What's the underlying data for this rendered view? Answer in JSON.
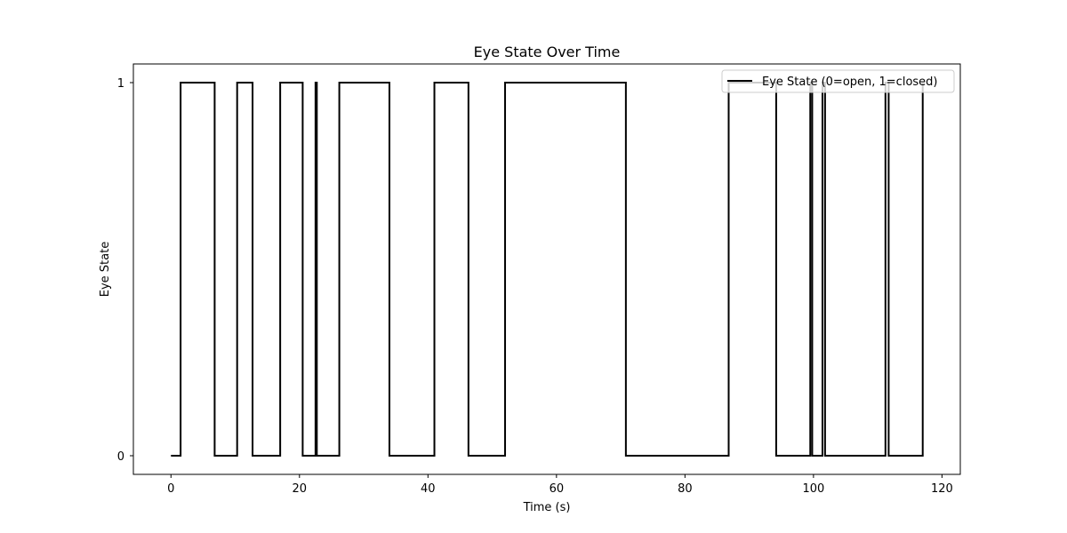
{
  "chart_data": {
    "type": "line",
    "step": true,
    "title": "Eye State Over Time",
    "xlabel": "Time (s)",
    "ylabel": "Eye State",
    "xlim": [
      -5.85,
      122.85
    ],
    "ylim": [
      -0.05,
      1.05
    ],
    "x_ticks": [
      0,
      20,
      40,
      60,
      80,
      100,
      120
    ],
    "y_ticks": [
      0,
      1
    ],
    "grid": false,
    "legend": {
      "position": "top-right"
    },
    "series": [
      {
        "name": "Eye State (0=open, 1=closed)",
        "color": "#000000",
        "x": [
          0,
          1.5,
          6.8,
          10.3,
          12.7,
          17.0,
          20.5,
          22.5,
          22.7,
          22.9,
          26.2,
          34.0,
          41.0,
          46.3,
          52.0,
          70.8,
          86.8,
          94.2,
          99.5,
          99.8,
          101.4,
          101.8,
          111.2,
          111.7,
          117.0
        ],
        "y": [
          0,
          1,
          0,
          1,
          0,
          1,
          0,
          1,
          0,
          0,
          1,
          0,
          1,
          0,
          1,
          0,
          1,
          0,
          1,
          0,
          1,
          0,
          1,
          0,
          1
        ]
      }
    ]
  }
}
